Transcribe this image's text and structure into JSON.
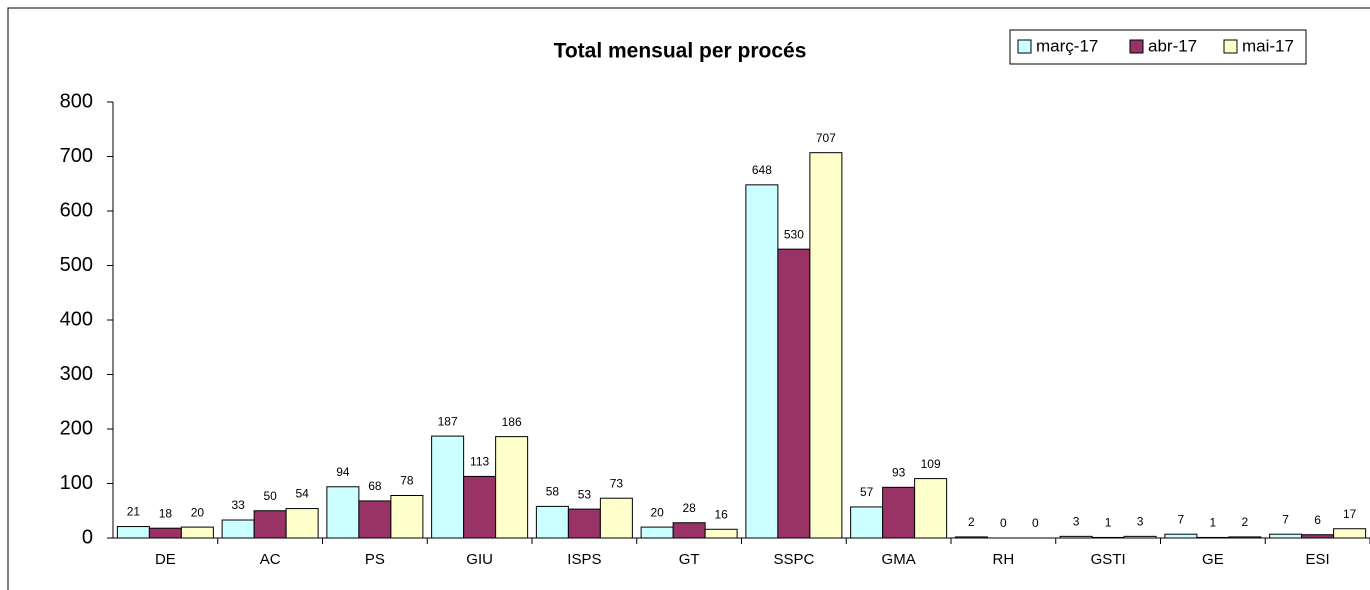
{
  "chart_data": {
    "type": "bar",
    "title": "Total mensual per procés",
    "categories": [
      "DE",
      "AC",
      "PS",
      "GIU",
      "ISPS",
      "GT",
      "SSPC",
      "GMA",
      "RH",
      "GSTI",
      "GE",
      "ESI"
    ],
    "series": [
      {
        "name": "març-17",
        "color": "#ccffff",
        "values": [
          21,
          33,
          94,
          187,
          58,
          20,
          648,
          57,
          2,
          3,
          7,
          7
        ]
      },
      {
        "name": "abr-17",
        "color": "#993366",
        "values": [
          18,
          50,
          68,
          113,
          53,
          28,
          530,
          93,
          0,
          1,
          1,
          6
        ]
      },
      {
        "name": "mai-17",
        "color": "#ffffcc",
        "values": [
          20,
          54,
          78,
          186,
          73,
          16,
          707,
          109,
          0,
          3,
          2,
          17
        ]
      }
    ],
    "ylim": [
      0,
      800
    ],
    "yticks": [
      0,
      100,
      200,
      300,
      400,
      500,
      600,
      700,
      800
    ],
    "legend": "top-right"
  }
}
